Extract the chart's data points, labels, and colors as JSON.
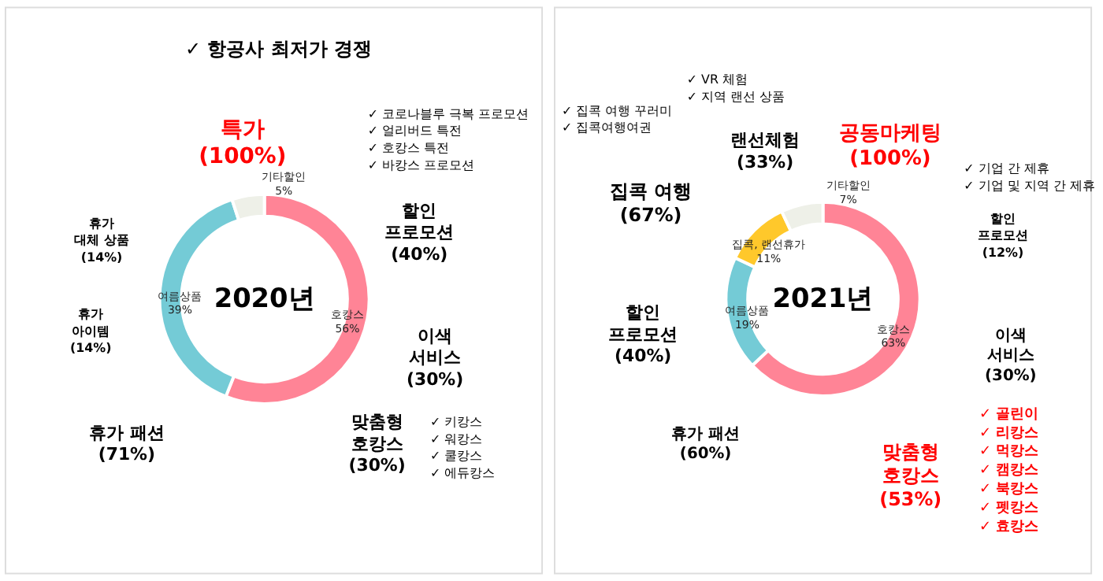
{
  "chart_data": [
    {
      "type": "donut",
      "title": "2020년",
      "categories": [
        "호캉스",
        "여름상품",
        "기타할인"
      ],
      "values": [
        56,
        39,
        5
      ],
      "value_labels": [
        "56%",
        "39%",
        "5%"
      ],
      "colors": [
        "#ff8496",
        "#74cbd6",
        "#eef0e8"
      ],
      "annotations": [
        "✓  항공사 최저가 경쟁",
        "특가\n(100%)",
        "✓  코로나블루 극복 프로모션\n✓  얼리버드 특전\n✓  호캉스 특전\n✓  바캉스 프로모션",
        "할인\n프로모션\n(40%)",
        "휴가\n대체 상품\n(14%)",
        "휴가\n아이템\n(14%)",
        "이색\n서비스\n(30%)",
        "휴가 패션\n(71%)",
        "맞춤형\n호캉스\n(30%)",
        "✓  키캉스\n✓  워캉스\n✓  쿨캉스\n✓  에듀캉스"
      ]
    },
    {
      "type": "donut",
      "title": "2021년",
      "categories": [
        "호캉스",
        "여름상품",
        "집콕, 랜선휴가",
        "기타할인"
      ],
      "values": [
        63,
        19,
        11,
        7
      ],
      "value_labels": [
        "63%",
        "19%",
        "11%",
        "7%"
      ],
      "colors": [
        "#ff8496",
        "#74cbd6",
        "#ffc82b",
        "#eef0e8"
      ],
      "annotations": [
        "✓  VR 체험\n✓  지역 랜선 상품",
        "✓  집콕 여행 꾸러미\n✓  집콕여행여권",
        "랜선체험\n(33%)",
        "공동마케팅\n(100%)",
        "집콕 여행\n(67%)",
        "✓  기업 간 제휴\n✓  기업 및 지역 간 제휴",
        "할인\n프로모션\n(12%)",
        "할인\n프로모션\n(40%)",
        "이색\n서비스\n(30%)",
        "휴가 패션\n(60%)",
        "맞춤형\n호캉스\n(53%)",
        "✓  골린이\n✓  리캉스\n✓  먹캉스\n✓  캠캉스\n✓  북캉스\n✓  펫캉스\n✓  효캉스"
      ]
    }
  ]
}
